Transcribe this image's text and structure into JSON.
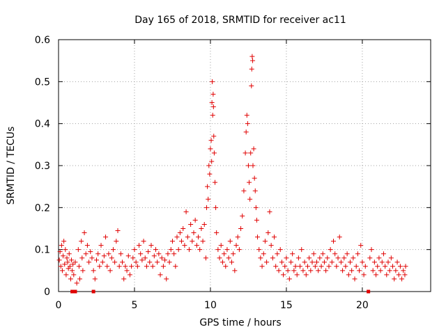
{
  "chart_data": {
    "type": "scatter",
    "title": "Day 165 of 2018, SRMTID for receiver ac11",
    "xlabel": "GPS time / hours",
    "ylabel": "SRMTID / TECUs",
    "xlim": [
      0,
      24.5
    ],
    "ylim": [
      0,
      0.6
    ],
    "xticks": [
      0,
      5,
      10,
      15,
      20
    ],
    "xtick_labels": [
      "0",
      "5",
      "10",
      "15",
      "20"
    ],
    "yticks": [
      0,
      0.1,
      0.2,
      0.3,
      0.4,
      0.5,
      0.6
    ],
    "ytick_labels": [
      "0",
      "0.1",
      "0.2",
      "0.3",
      "0.4",
      "0.5",
      "0.6"
    ],
    "grid": true,
    "marker": "+",
    "color": "#e00000",
    "series": [
      {
        "name": "SRMTID",
        "points": [
          [
            0.05,
            0.075
          ],
          [
            0.1,
            0.095
          ],
          [
            0.15,
            0.06
          ],
          [
            0.2,
            0.11
          ],
          [
            0.25,
            0.05
          ],
          [
            0.3,
            0.085
          ],
          [
            0.35,
            0.12
          ],
          [
            0.4,
            0.065
          ],
          [
            0.45,
            0.1
          ],
          [
            0.5,
            0.04
          ],
          [
            0.55,
            0.08
          ],
          [
            0.6,
            0.07
          ],
          [
            0.65,
            0.055
          ],
          [
            0.7,
            0.09
          ],
          [
            0.75,
            0.06
          ],
          [
            0.8,
            0.03
          ],
          [
            0.85,
            0.075
          ],
          [
            0.9,
            0.05
          ],
          [
            0.95,
            0.065
          ],
          [
            1.0,
            0.04
          ],
          [
            1.1,
            0.07
          ],
          [
            1.2,
            0.02
          ],
          [
            1.3,
            0.1
          ],
          [
            1.35,
            0.06
          ],
          [
            1.4,
            0.03
          ],
          [
            1.5,
            0.12
          ],
          [
            1.55,
            0.08
          ],
          [
            1.6,
            0.05
          ],
          [
            1.7,
            0.14
          ],
          [
            1.8,
            0.09
          ],
          [
            1.9,
            0.11
          ],
          [
            2.0,
            0.07
          ],
          [
            2.1,
            0.095
          ],
          [
            2.2,
            0.08
          ],
          [
            2.3,
            0.05
          ],
          [
            2.4,
            0.03
          ],
          [
            2.5,
            0.075
          ],
          [
            2.6,
            0.09
          ],
          [
            2.7,
            0.06
          ],
          [
            2.8,
            0.11
          ],
          [
            2.9,
            0.07
          ],
          [
            3.0,
            0.085
          ],
          [
            3.1,
            0.13
          ],
          [
            3.2,
            0.06
          ],
          [
            3.3,
            0.09
          ],
          [
            3.4,
            0.05
          ],
          [
            3.5,
            0.08
          ],
          [
            3.6,
            0.1
          ],
          [
            3.7,
            0.07
          ],
          [
            3.8,
            0.12
          ],
          [
            3.9,
            0.145
          ],
          [
            4.0,
            0.06
          ],
          [
            4.1,
            0.09
          ],
          [
            4.2,
            0.07
          ],
          [
            4.3,
            0.03
          ],
          [
            4.4,
            0.06
          ],
          [
            4.5,
            0.05
          ],
          [
            4.6,
            0.085
          ],
          [
            4.7,
            0.04
          ],
          [
            4.8,
            0.06
          ],
          [
            4.9,
            0.08
          ],
          [
            5.0,
            0.1
          ],
          [
            5.1,
            0.07
          ],
          [
            5.2,
            0.06
          ],
          [
            5.3,
            0.11
          ],
          [
            5.4,
            0.09
          ],
          [
            5.5,
            0.075
          ],
          [
            5.6,
            0.12
          ],
          [
            5.7,
            0.08
          ],
          [
            5.8,
            0.06
          ],
          [
            5.9,
            0.095
          ],
          [
            6.0,
            0.07
          ],
          [
            6.1,
            0.11
          ],
          [
            6.2,
            0.06
          ],
          [
            6.3,
            0.085
          ],
          [
            6.4,
            0.1
          ],
          [
            6.5,
            0.07
          ],
          [
            6.6,
            0.09
          ],
          [
            6.7,
            0.04
          ],
          [
            6.8,
            0.08
          ],
          [
            6.9,
            0.06
          ],
          [
            7.0,
            0.075
          ],
          [
            7.1,
            0.03
          ],
          [
            7.2,
            0.09
          ],
          [
            7.3,
            0.07
          ],
          [
            7.4,
            0.1
          ],
          [
            7.5,
            0.12
          ],
          [
            7.6,
            0.09
          ],
          [
            7.7,
            0.06
          ],
          [
            7.8,
            0.13
          ],
          [
            7.9,
            0.1
          ],
          [
            8.0,
            0.14
          ],
          [
            8.1,
            0.12
          ],
          [
            8.2,
            0.15
          ],
          [
            8.3,
            0.11
          ],
          [
            8.4,
            0.19
          ],
          [
            8.5,
            0.13
          ],
          [
            8.6,
            0.1
          ],
          [
            8.7,
            0.16
          ],
          [
            8.8,
            0.12
          ],
          [
            8.9,
            0.14
          ],
          [
            9.0,
            0.17
          ],
          [
            9.1,
            0.11
          ],
          [
            9.2,
            0.13
          ],
          [
            9.3,
            0.1
          ],
          [
            9.4,
            0.15
          ],
          [
            9.5,
            0.12
          ],
          [
            9.6,
            0.16
          ],
          [
            9.7,
            0.08
          ],
          [
            9.75,
            0.2
          ],
          [
            9.8,
            0.25
          ],
          [
            9.85,
            0.22
          ],
          [
            9.9,
            0.3
          ],
          [
            9.95,
            0.28
          ],
          [
            10.0,
            0.34
          ],
          [
            10.05,
            0.36
          ],
          [
            10.08,
            0.31
          ],
          [
            10.1,
            0.45
          ],
          [
            10.12,
            0.5
          ],
          [
            10.15,
            0.42
          ],
          [
            10.18,
            0.47
          ],
          [
            10.2,
            0.44
          ],
          [
            10.22,
            0.37
          ],
          [
            10.25,
            0.33
          ],
          [
            10.3,
            0.26
          ],
          [
            10.35,
            0.2
          ],
          [
            10.4,
            0.14
          ],
          [
            10.5,
            0.1
          ],
          [
            10.6,
            0.08
          ],
          [
            10.7,
            0.11
          ],
          [
            10.8,
            0.07
          ],
          [
            10.9,
            0.09
          ],
          [
            11.0,
            0.06
          ],
          [
            11.1,
            0.1
          ],
          [
            11.2,
            0.08
          ],
          [
            11.3,
            0.12
          ],
          [
            11.4,
            0.07
          ],
          [
            11.5,
            0.09
          ],
          [
            11.6,
            0.05
          ],
          [
            11.7,
            0.11
          ],
          [
            11.8,
            0.13
          ],
          [
            11.9,
            0.1
          ],
          [
            12.0,
            0.15
          ],
          [
            12.1,
            0.18
          ],
          [
            12.2,
            0.24
          ],
          [
            12.3,
            0.33
          ],
          [
            12.35,
            0.38
          ],
          [
            12.4,
            0.42
          ],
          [
            12.45,
            0.4
          ],
          [
            12.5,
            0.3
          ],
          [
            12.55,
            0.26
          ],
          [
            12.6,
            0.22
          ],
          [
            12.65,
            0.33
          ],
          [
            12.7,
            0.49
          ],
          [
            12.72,
            0.53
          ],
          [
            12.75,
            0.56
          ],
          [
            12.78,
            0.55
          ],
          [
            12.8,
            0.3
          ],
          [
            12.85,
            0.34
          ],
          [
            12.9,
            0.27
          ],
          [
            12.95,
            0.24
          ],
          [
            13.0,
            0.2
          ],
          [
            13.05,
            0.17
          ],
          [
            13.1,
            0.13
          ],
          [
            13.2,
            0.1
          ],
          [
            13.3,
            0.08
          ],
          [
            13.4,
            0.06
          ],
          [
            13.5,
            0.09
          ],
          [
            13.6,
            0.12
          ],
          [
            13.7,
            0.07
          ],
          [
            13.8,
            0.14
          ],
          [
            13.9,
            0.19
          ],
          [
            14.0,
            0.11
          ],
          [
            14.1,
            0.08
          ],
          [
            14.2,
            0.13
          ],
          [
            14.3,
            0.06
          ],
          [
            14.4,
            0.09
          ],
          [
            14.5,
            0.05
          ],
          [
            14.6,
            0.1
          ],
          [
            14.7,
            0.07
          ],
          [
            14.8,
            0.04
          ],
          [
            14.9,
            0.06
          ],
          [
            15.0,
            0.08
          ],
          [
            15.1,
            0.05
          ],
          [
            15.2,
            0.03
          ],
          [
            15.3,
            0.07
          ],
          [
            15.4,
            0.09
          ],
          [
            15.5,
            0.05
          ],
          [
            15.6,
            0.06
          ],
          [
            15.7,
            0.04
          ],
          [
            15.8,
            0.08
          ],
          [
            15.9,
            0.06
          ],
          [
            16.0,
            0.1
          ],
          [
            16.1,
            0.05
          ],
          [
            16.2,
            0.07
          ],
          [
            16.3,
            0.04
          ],
          [
            16.4,
            0.06
          ],
          [
            16.5,
            0.08
          ],
          [
            16.6,
            0.05
          ],
          [
            16.7,
            0.07
          ],
          [
            16.8,
            0.09
          ],
          [
            16.9,
            0.06
          ],
          [
            17.0,
            0.07
          ],
          [
            17.1,
            0.05
          ],
          [
            17.2,
            0.08
          ],
          [
            17.3,
            0.06
          ],
          [
            17.4,
            0.09
          ],
          [
            17.5,
            0.07
          ],
          [
            17.6,
            0.05
          ],
          [
            17.7,
            0.08
          ],
          [
            17.8,
            0.06
          ],
          [
            17.9,
            0.1
          ],
          [
            18.0,
            0.07
          ],
          [
            18.1,
            0.12
          ],
          [
            18.2,
            0.09
          ],
          [
            18.3,
            0.06
          ],
          [
            18.4,
            0.08
          ],
          [
            18.5,
            0.13
          ],
          [
            18.6,
            0.07
          ],
          [
            18.7,
            0.05
          ],
          [
            18.8,
            0.08
          ],
          [
            18.9,
            0.06
          ],
          [
            19.0,
            0.09
          ],
          [
            19.1,
            0.04
          ],
          [
            19.2,
            0.07
          ],
          [
            19.3,
            0.05
          ],
          [
            19.4,
            0.08
          ],
          [
            19.5,
            0.03
          ],
          [
            19.6,
            0.06
          ],
          [
            19.7,
            0.09
          ],
          [
            19.8,
            0.05
          ],
          [
            19.9,
            0.11
          ],
          [
            20.0,
            0.07
          ],
          [
            20.1,
            0.04
          ],
          [
            20.2,
            0.06
          ],
          [
            20.5,
            0.08
          ],
          [
            20.6,
            0.1
          ],
          [
            20.7,
            0.05
          ],
          [
            20.8,
            0.07
          ],
          [
            20.9,
            0.04
          ],
          [
            21.0,
            0.06
          ],
          [
            21.1,
            0.08
          ],
          [
            21.2,
            0.05
          ],
          [
            21.3,
            0.07
          ],
          [
            21.4,
            0.09
          ],
          [
            21.5,
            0.06
          ],
          [
            21.6,
            0.04
          ],
          [
            21.7,
            0.07
          ],
          [
            21.8,
            0.05
          ],
          [
            21.9,
            0.08
          ],
          [
            22.0,
            0.06
          ],
          [
            22.1,
            0.03
          ],
          [
            22.2,
            0.05
          ],
          [
            22.3,
            0.07
          ],
          [
            22.4,
            0.04
          ],
          [
            22.5,
            0.06
          ],
          [
            22.6,
            0.03
          ],
          [
            22.7,
            0.05
          ],
          [
            22.8,
            0.04
          ],
          [
            22.85,
            0.06
          ]
        ]
      }
    ],
    "zero_markers_x": [
      0.9,
      1.0,
      1.1,
      2.3,
      20.4
    ]
  }
}
